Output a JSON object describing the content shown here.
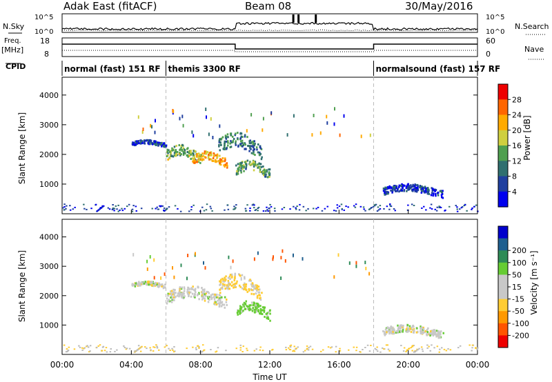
{
  "header": {
    "station": "Adak East (fitACF)",
    "beam": "Beam 08",
    "date": "30/May/2016"
  },
  "top_panels": {
    "left_labels": {
      "nsky": "N.Sky",
      "freq": "Freq.",
      "freq_unit": "[MHz]",
      "cpid": "CPID"
    },
    "right_labels": {
      "nsearch": "N.Search",
      "nave": "Nave"
    },
    "noise_ticks": {
      "top": "10^5",
      "bottom": "10^0"
    },
    "freq_ticks": {
      "top": "18",
      "bottom": "8"
    },
    "nave_ticks": {
      "top": "60",
      "bottom": "0"
    }
  },
  "cpid_segments": [
    {
      "label": "normal (fast) 151 RF",
      "start_h": 0,
      "end_h": 6
    },
    {
      "label": "themis 3300 RF",
      "start_h": 6,
      "end_h": 18
    },
    {
      "label": "normalsound (fast) 157 RF",
      "start_h": 18,
      "end_h": 24
    }
  ],
  "colors": {
    "power": [
      "#0000ee",
      "#1f3f9f",
      "#2f6f6f",
      "#4f9f4f",
      "#cfcf3f",
      "#ffaa00",
      "#ff6600",
      "#ee0000"
    ],
    "velocity": [
      "#ee0000",
      "#ff5500",
      "#ff9900",
      "#ffcc33",
      "#c8c8c8",
      "#c8c8c8",
      "#66cc33",
      "#2e8b57",
      "#1f5f8f",
      "#0000cc"
    ],
    "ground": "#bbbbbb"
  },
  "chart_data": [
    {
      "type": "heatmap",
      "name": "power",
      "xlabel": "",
      "ylabel": "Slant Range [km]",
      "xlim": [
        0,
        24
      ],
      "ylim": [
        0,
        4600
      ],
      "y_ticks": [
        "1000",
        "2000",
        "3000",
        "4000"
      ],
      "colorbar": {
        "label": "Power [dB]",
        "ticks": [
          "4",
          "8",
          "12",
          "16",
          "20",
          "24",
          "28"
        ],
        "range": [
          0,
          30
        ]
      },
      "echo_regions": [
        {
          "t_start": 4.0,
          "t_end": 6.0,
          "range_km": [
            2280,
            2500
          ],
          "value": 6
        },
        {
          "t_start": 6.0,
          "t_end": 8.0,
          "range_km": [
            1700,
            2300
          ],
          "value": 14
        },
        {
          "t_start": 7.5,
          "t_end": 9.5,
          "range_km": [
            1600,
            2100
          ],
          "value": 20
        },
        {
          "t_start": 9.0,
          "t_end": 11.5,
          "range_km": [
            1900,
            2700
          ],
          "value": 10
        },
        {
          "t_start": 10.0,
          "t_end": 12.0,
          "range_km": [
            1200,
            1800
          ],
          "value": 12
        },
        {
          "t_start": 18.5,
          "t_end": 22.0,
          "range_km": [
            580,
            1000
          ],
          "value": 5
        }
      ],
      "ground_band_km": [
        100,
        350
      ]
    },
    {
      "type": "heatmap",
      "name": "velocity",
      "xlabel": "Time UT",
      "ylabel": "Slant Range [km]",
      "xlim": [
        0,
        24
      ],
      "ylim": [
        0,
        4600
      ],
      "y_ticks": [
        "1000",
        "2000",
        "3000",
        "4000"
      ],
      "x_ticks": [
        "00:00",
        "04:00",
        "08:00",
        "12:00",
        "16:00",
        "20:00",
        "00:00"
      ],
      "colorbar": {
        "label": "Velocity [m s⁻¹]",
        "ticks": [
          "-200",
          "-100",
          "-50",
          "-15",
          "15",
          "50",
          "100",
          "200"
        ]
      },
      "echo_regions": [
        {
          "t_start": 4.0,
          "t_end": 6.0,
          "range_km": [
            2280,
            2500
          ],
          "value": 0
        },
        {
          "t_start": 6.0,
          "t_end": 9.5,
          "range_km": [
            1600,
            2300
          ],
          "value": 0
        },
        {
          "t_start": 9.0,
          "t_end": 11.5,
          "range_km": [
            1900,
            2700
          ],
          "value": -20
        },
        {
          "t_start": 10.0,
          "t_end": 12.0,
          "range_km": [
            1200,
            1800
          ],
          "value": 30
        },
        {
          "t_start": 18.5,
          "t_end": 22.0,
          "range_km": [
            580,
            1000
          ],
          "value": 0
        }
      ],
      "ground_band_km": [
        100,
        350
      ]
    }
  ]
}
